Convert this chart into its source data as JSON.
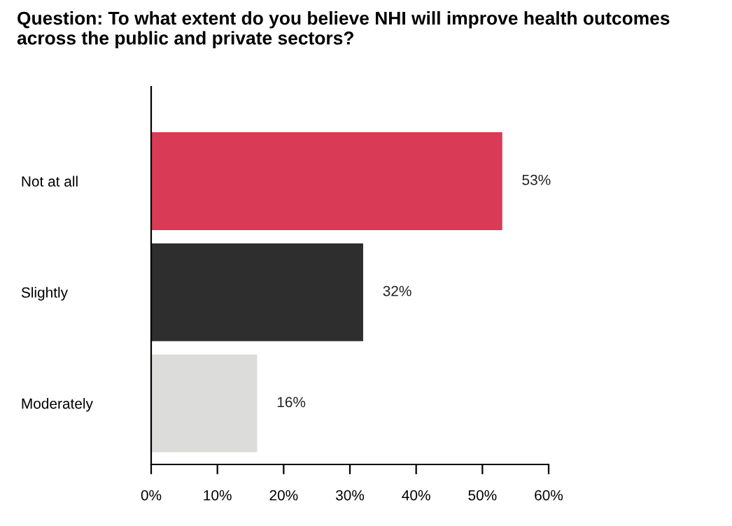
{
  "chart_data": {
    "type": "bar",
    "orientation": "horizontal",
    "title": "Question: To what extent do you believe NHI will improve health outcomes across the public and private sectors?",
    "categories": [
      "Not at all",
      "Slightly",
      "Moderately"
    ],
    "values": [
      53,
      32,
      16
    ],
    "colors": [
      "#d93a55",
      "#2e2e2e",
      "#dcdcda"
    ],
    "value_labels": [
      "53%",
      "32%",
      "16%"
    ],
    "xlim": [
      0,
      60
    ],
    "xticks": [
      {
        "value": 0,
        "label": "0%"
      },
      {
        "value": 10,
        "label": "10%"
      },
      {
        "value": 20,
        "label": "20%"
      },
      {
        "value": 30,
        "label": "30%"
      },
      {
        "value": 40,
        "label": "40%"
      },
      {
        "value": 50,
        "label": "50%"
      },
      {
        "value": 60,
        "label": "60%"
      }
    ],
    "grid": false,
    "legend": false
  }
}
